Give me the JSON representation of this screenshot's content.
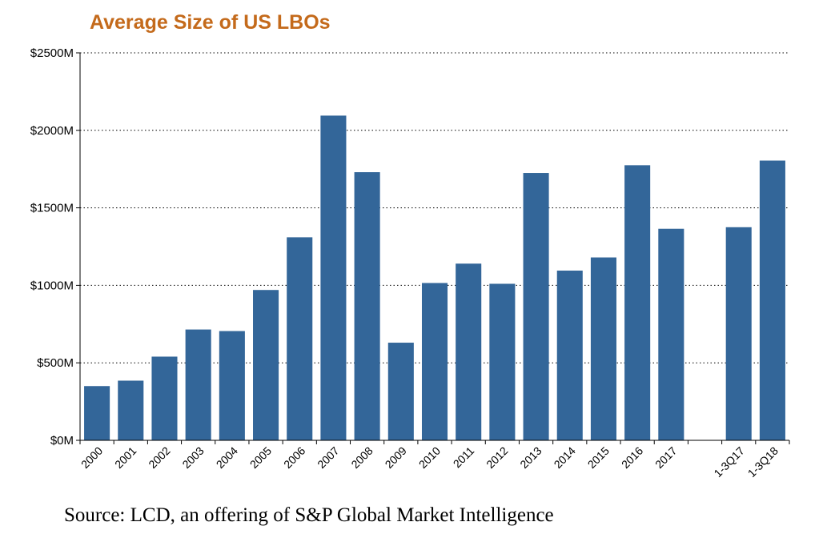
{
  "title": "Average Size of US LBOs",
  "source": "Source: LCD, an offering of S&P Global Market Intelligence",
  "colors": {
    "title": "#c46a1b",
    "bar": "#336699"
  },
  "chart_data": {
    "type": "bar",
    "title": "Average Size of US LBOs",
    "xlabel": "",
    "ylabel": "",
    "categories": [
      "2000",
      "2001",
      "2002",
      "2003",
      "2004",
      "2005",
      "2006",
      "2007",
      "2008",
      "2009",
      "2010",
      "2011",
      "2012",
      "2013",
      "2014",
      "2015",
      "2016",
      "2017",
      "",
      "1-3Q17",
      "1-3Q18"
    ],
    "values": [
      350,
      385,
      540,
      715,
      705,
      970,
      1310,
      2095,
      1730,
      630,
      1015,
      1140,
      1010,
      1725,
      1095,
      1180,
      1775,
      1365,
      null,
      1375,
      1805
    ],
    "ylim": [
      0,
      2500
    ],
    "yticks": [
      0,
      500,
      1000,
      1500,
      2000,
      2500
    ],
    "ytick_labels": [
      "$0M",
      "$500M",
      "$1000M",
      "$1500M",
      "$2000M",
      "$2500M"
    ],
    "grid": true,
    "legend": "none"
  }
}
